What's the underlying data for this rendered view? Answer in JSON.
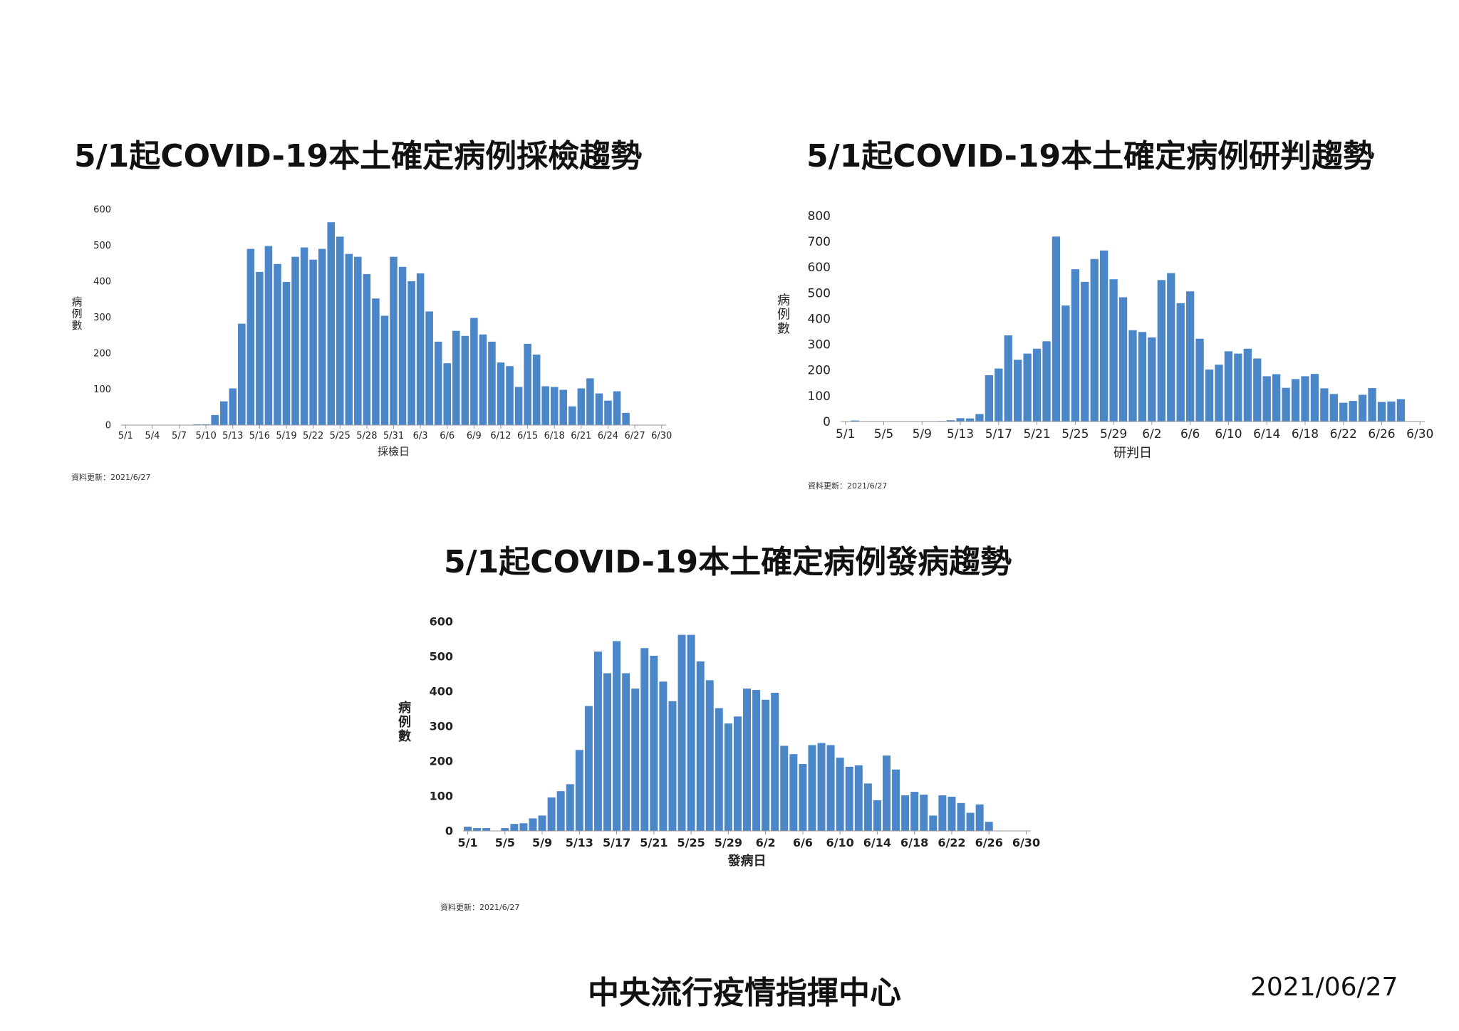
{
  "colors": {
    "bar": "#4a86c8",
    "axis": "#999999",
    "text": "#111111"
  },
  "chart_data": [
    {
      "id": "sampling",
      "type": "bar",
      "title": "5/1起COVID-19本土確定病例採檢趨勢",
      "xlabel": "採檢日",
      "ylabel": "病例數",
      "ylim": [
        0,
        600
      ],
      "yticks": [
        "0",
        "100",
        "200",
        "300",
        "400",
        "500",
        "600"
      ],
      "grid": false,
      "xtick_labels": [
        "5/1",
        "5/4",
        "5/7",
        "5/10",
        "5/13",
        "5/16",
        "5/19",
        "5/22",
        "5/25",
        "5/28",
        "5/31",
        "6/3",
        "6/6",
        "6/9",
        "6/12",
        "6/15",
        "6/18",
        "6/21",
        "6/24",
        "6/27",
        "6/30"
      ],
      "start_day": "5/1",
      "values": [
        0,
        0,
        0,
        0,
        0,
        0,
        0,
        0,
        2,
        2,
        28,
        66,
        102,
        282,
        490,
        426,
        498,
        448,
        398,
        468,
        494,
        460,
        490,
        564,
        524,
        476,
        468,
        420,
        352,
        304,
        468,
        440,
        400,
        422,
        316,
        232,
        172,
        262,
        248,
        298,
        252,
        232,
        174,
        164,
        106,
        226,
        196,
        108,
        106,
        98,
        52,
        102,
        130,
        88,
        68,
        94,
        34,
        0,
        0,
        0,
        0
      ],
      "note": "資料更新：2021/6/27"
    },
    {
      "id": "confirmed",
      "type": "bar",
      "title": "5/1起COVID-19本土確定病例研判趨勢",
      "xlabel": "研判日",
      "ylabel": "病例數",
      "ylim": [
        0,
        800
      ],
      "yticks": [
        "0",
        "100",
        "200",
        "300",
        "400",
        "500",
        "600",
        "700",
        "800"
      ],
      "grid": false,
      "xtick_labels": [
        "5/1",
        "5/5",
        "5/9",
        "5/13",
        "5/17",
        "5/21",
        "5/25",
        "5/29",
        "6/2",
        "6/6",
        "6/10",
        "6/14",
        "6/18",
        "6/22",
        "6/26",
        "6/30"
      ],
      "start_day": "5/1",
      "values": [
        0,
        4,
        0,
        0,
        0,
        0,
        0,
        0,
        0,
        0,
        2,
        5,
        13,
        12,
        29,
        180,
        206,
        335,
        240,
        264,
        283,
        312,
        719,
        451,
        592,
        543,
        632,
        665,
        553,
        483,
        355,
        348,
        327,
        550,
        577,
        460,
        506,
        322,
        202,
        221,
        273,
        264,
        283,
        245,
        176,
        184,
        131,
        165,
        176,
        185,
        129,
        107,
        73,
        80,
        104,
        130,
        76,
        78,
        87,
        0,
        0
      ],
      "note": "資料更新：2021/6/27"
    },
    {
      "id": "onset",
      "type": "bar",
      "title": "5/1起COVID-19本土確定病例發病趨勢",
      "xlabel": "發病日",
      "ylabel": "病例數",
      "ylim": [
        0,
        600
      ],
      "yticks": [
        "0",
        "100",
        "200",
        "300",
        "400",
        "500",
        "600"
      ],
      "grid": false,
      "xtick_labels": [
        "5/1",
        "5/5",
        "5/9",
        "5/13",
        "5/17",
        "5/21",
        "5/25",
        "5/29",
        "6/2",
        "6/6",
        "6/10",
        "6/14",
        "6/18",
        "6/22",
        "6/26",
        "6/30"
      ],
      "start_day": "5/1",
      "values": [
        12,
        8,
        8,
        0,
        8,
        20,
        22,
        36,
        44,
        96,
        114,
        134,
        232,
        358,
        514,
        452,
        544,
        452,
        408,
        524,
        502,
        428,
        372,
        562,
        562,
        486,
        432,
        352,
        308,
        328,
        408,
        404,
        376,
        396,
        244,
        220,
        192,
        246,
        252,
        246,
        210,
        184,
        188,
        136,
        88,
        216,
        176,
        102,
        112,
        104,
        44,
        102,
        98,
        80,
        52,
        76,
        26,
        0,
        0,
        0,
        0
      ],
      "note": "資料更新：2021/6/27"
    }
  ],
  "footer": {
    "org": "中央流行疫情指揮中心",
    "date": "2021/06/27"
  }
}
